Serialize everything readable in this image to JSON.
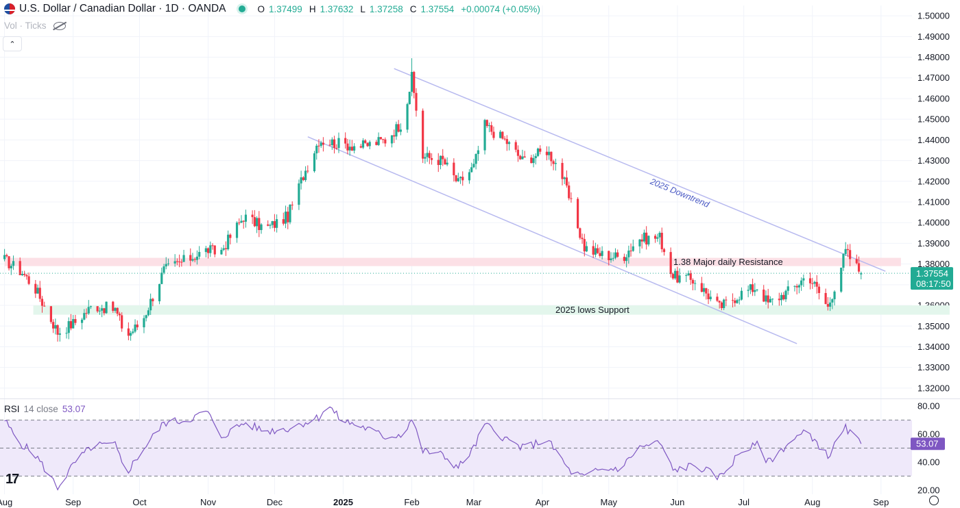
{
  "header": {
    "symbol": "U.S. Dollar / Canadian Dollar · 1D · OANDA",
    "ohlc": [
      {
        "k": "O",
        "v": "1.37499"
      },
      {
        "k": "H",
        "v": "1.37632"
      },
      {
        "k": "L",
        "v": "1.37258"
      },
      {
        "k": "C",
        "v": "1.37554"
      },
      {
        "k": "",
        "v": "+0.00074 (+0.05%)"
      }
    ],
    "volume_label": "Vol · Ticks",
    "collapse_glyph": "⌃"
  },
  "icons": {
    "flag": "usd-cad-flag-icon",
    "status": "market-open-dot-icon",
    "visibility": "eye-off-icon",
    "logo": "tradingview-logo-icon",
    "settings": "gear-icon"
  },
  "logo_text": "17",
  "colors": {
    "up": "#22ab94",
    "down": "#f23645",
    "channel": "#b7b9ef",
    "resistance_zone": "#fce0e6",
    "support_zone": "#e3f6ec",
    "rsi_line": "#7e57c2",
    "rsi_band": "#efe9fa",
    "last_price_bg": "#22ab94"
  },
  "chart_data": {
    "type": "candlestick",
    "instrument": "U.S. Dollar / Canadian Dollar",
    "timeframe": "1D",
    "source": "OANDA",
    "y_axis": {
      "min": 1.315,
      "max": 1.505,
      "ticks": [
        "1.50000",
        "1.49000",
        "1.48000",
        "1.47000",
        "1.46000",
        "1.45000",
        "1.44000",
        "1.43000",
        "1.42000",
        "1.41000",
        "1.40000",
        "1.39000",
        "1.38000",
        "1.37000",
        "1.36000",
        "1.35000",
        "1.34000",
        "1.33000",
        "1.32000"
      ]
    },
    "x_axis": {
      "labels": [
        {
          "text": "Aug",
          "day": 0,
          "bold": false
        },
        {
          "text": "Sep",
          "day": 31,
          "bold": false
        },
        {
          "text": "Oct",
          "day": 61,
          "bold": false
        },
        {
          "text": "Nov",
          "day": 92,
          "bold": false
        },
        {
          "text": "Dec",
          "day": 122,
          "bold": false
        },
        {
          "text": "2025",
          "day": 153,
          "bold": true
        },
        {
          "text": "Feb",
          "day": 184,
          "bold": false
        },
        {
          "text": "Mar",
          "day": 212,
          "bold": false
        },
        {
          "text": "Apr",
          "day": 243,
          "bold": false
        },
        {
          "text": "May",
          "day": 273,
          "bold": false
        },
        {
          "text": "Jun",
          "day": 304,
          "bold": false
        },
        {
          "text": "Jul",
          "day": 334,
          "bold": false
        },
        {
          "text": "Aug",
          "day": 365,
          "bold": false
        },
        {
          "text": "Sep",
          "day": 396,
          "bold": false
        }
      ],
      "range": [
        -0.5,
        410
      ]
    },
    "key_points": [
      {
        "day": 0,
        "price": 1.382
      },
      {
        "day": 8,
        "price": 1.376
      },
      {
        "day": 14,
        "price": 1.368
      },
      {
        "day": 24,
        "price": 1.347
      },
      {
        "day": 32,
        "price": 1.352
      },
      {
        "day": 40,
        "price": 1.36
      },
      {
        "day": 50,
        "price": 1.358
      },
      {
        "day": 55,
        "price": 1.345
      },
      {
        "day": 62,
        "price": 1.352
      },
      {
        "day": 72,
        "price": 1.377
      },
      {
        "day": 82,
        "price": 1.382
      },
      {
        "day": 92,
        "price": 1.387
      },
      {
        "day": 97,
        "price": 1.385
      },
      {
        "day": 108,
        "price": 1.403
      },
      {
        "day": 118,
        "price": 1.397
      },
      {
        "day": 128,
        "price": 1.403
      },
      {
        "day": 135,
        "price": 1.423
      },
      {
        "day": 142,
        "price": 1.44
      },
      {
        "day": 152,
        "price": 1.438
      },
      {
        "day": 162,
        "price": 1.437
      },
      {
        "day": 172,
        "price": 1.44
      },
      {
        "day": 180,
        "price": 1.449
      },
      {
        "day": 184,
        "price": 1.47
      },
      {
        "day": 189,
        "price": 1.432
      },
      {
        "day": 198,
        "price": 1.43
      },
      {
        "day": 205,
        "price": 1.419
      },
      {
        "day": 212,
        "price": 1.427
      },
      {
        "day": 217,
        "price": 1.447
      },
      {
        "day": 227,
        "price": 1.439
      },
      {
        "day": 234,
        "price": 1.43
      },
      {
        "day": 245,
        "price": 1.435
      },
      {
        "day": 251,
        "price": 1.426
      },
      {
        "day": 255,
        "price": 1.412
      },
      {
        "day": 262,
        "price": 1.388
      },
      {
        "day": 268,
        "price": 1.385
      },
      {
        "day": 279,
        "price": 1.383
      },
      {
        "day": 286,
        "price": 1.392
      },
      {
        "day": 296,
        "price": 1.393
      },
      {
        "day": 302,
        "price": 1.374
      },
      {
        "day": 312,
        "price": 1.372
      },
      {
        "day": 323,
        "price": 1.359
      },
      {
        "day": 333,
        "price": 1.366
      },
      {
        "day": 340,
        "price": 1.369
      },
      {
        "day": 345,
        "price": 1.361
      },
      {
        "day": 356,
        "price": 1.368
      },
      {
        "day": 363,
        "price": 1.375
      },
      {
        "day": 372,
        "price": 1.359
      },
      {
        "day": 380,
        "price": 1.386
      },
      {
        "day": 387,
        "price": 1.3755
      }
    ],
    "last_bar": {
      "open": 1.37499,
      "high": 1.37632,
      "low": 1.37258,
      "close": 1.37554
    },
    "zones": [
      {
        "name": "resistance",
        "label": "1.38 Major daily Resistance",
        "from": 1.379,
        "to": 1.383,
        "day_from": 0,
        "day_to": 405
      },
      {
        "name": "support",
        "label": "2025 lows Support",
        "from": 1.3555,
        "to": 1.36,
        "day_from": 13,
        "day_to": 427
      }
    ],
    "channel": {
      "label": "2025 Downtrend",
      "upper": {
        "from": {
          "day": 176,
          "price": 1.4745
        },
        "to": {
          "day": 398,
          "price": 1.3765
        }
      },
      "lower": {
        "from": {
          "day": 137,
          "price": 1.4415
        },
        "to": {
          "day": 358,
          "price": 1.3415
        }
      }
    },
    "last_price_label": "1.37554",
    "countdown_label": "08:17:50"
  },
  "rsi": {
    "name": "RSI",
    "params": "14 close",
    "value": "53.07",
    "y_min": 17,
    "y_max": 84,
    "ticks": [
      "80.00",
      "60.00",
      "40.00",
      "20.00"
    ],
    "upper_band": 70,
    "middle_band": 50,
    "lower_band": 30,
    "key_points": [
      {
        "day": 0,
        "value": 70
      },
      {
        "day": 6,
        "value": 55
      },
      {
        "day": 14,
        "value": 45
      },
      {
        "day": 24,
        "value": 22
      },
      {
        "day": 32,
        "value": 40
      },
      {
        "day": 40,
        "value": 52
      },
      {
        "day": 50,
        "value": 52
      },
      {
        "day": 55,
        "value": 32
      },
      {
        "day": 62,
        "value": 48
      },
      {
        "day": 72,
        "value": 68
      },
      {
        "day": 82,
        "value": 70
      },
      {
        "day": 92,
        "value": 76
      },
      {
        "day": 97,
        "value": 57
      },
      {
        "day": 108,
        "value": 68
      },
      {
        "day": 118,
        "value": 62
      },
      {
        "day": 128,
        "value": 64
      },
      {
        "day": 142,
        "value": 72
      },
      {
        "day": 146,
        "value": 81
      },
      {
        "day": 152,
        "value": 70
      },
      {
        "day": 162,
        "value": 65
      },
      {
        "day": 172,
        "value": 58
      },
      {
        "day": 180,
        "value": 60
      },
      {
        "day": 184,
        "value": 71
      },
      {
        "day": 189,
        "value": 48
      },
      {
        "day": 198,
        "value": 45
      },
      {
        "day": 205,
        "value": 36
      },
      {
        "day": 212,
        "value": 50
      },
      {
        "day": 217,
        "value": 67
      },
      {
        "day": 227,
        "value": 56
      },
      {
        "day": 234,
        "value": 50
      },
      {
        "day": 245,
        "value": 56
      },
      {
        "day": 251,
        "value": 44
      },
      {
        "day": 255,
        "value": 34
      },
      {
        "day": 262,
        "value": 29
      },
      {
        "day": 268,
        "value": 34
      },
      {
        "day": 279,
        "value": 36
      },
      {
        "day": 286,
        "value": 50
      },
      {
        "day": 296,
        "value": 54
      },
      {
        "day": 302,
        "value": 34
      },
      {
        "day": 312,
        "value": 38
      },
      {
        "day": 323,
        "value": 29
      },
      {
        "day": 333,
        "value": 48
      },
      {
        "day": 340,
        "value": 52
      },
      {
        "day": 345,
        "value": 40
      },
      {
        "day": 356,
        "value": 56
      },
      {
        "day": 363,
        "value": 62
      },
      {
        "day": 372,
        "value": 44
      },
      {
        "day": 380,
        "value": 64
      },
      {
        "day": 387,
        "value": 53
      }
    ]
  }
}
